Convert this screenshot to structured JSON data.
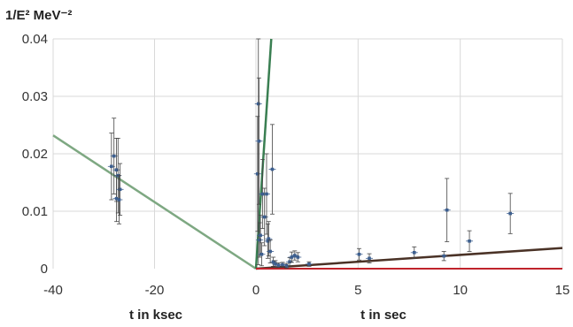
{
  "chart_data": {
    "type": "scatter",
    "y_axis_title": "1/E²  MeV⁻²",
    "xlabel_left": "t in ksec",
    "xlabel_right": "t in sec",
    "ylim": [
      0,
      0.04
    ],
    "y_ticks": [
      "0",
      "0.01",
      "0.02",
      "0.03",
      "0.04"
    ],
    "x_ticks_left": [
      "-40",
      "-20",
      "0"
    ],
    "x_ticks_right": [
      "5",
      "10",
      "15"
    ],
    "left_panel": {
      "unit": "ksec",
      "xlim": [
        -40,
        0
      ]
    },
    "right_panel": {
      "unit": "sec",
      "xlim": [
        0,
        15
      ]
    },
    "grid": true,
    "colors": {
      "points": "#3d5f8f",
      "error_bars": "#444444",
      "fit_left": "#7ea882",
      "fit_green": "#3a7f52",
      "fit_brown": "#4a3226",
      "baseline": "#c0232b",
      "grid": "#d9d9d9"
    },
    "points_ksec": [
      {
        "x": -28.5,
        "y": 0.0178,
        "yerr": 0.0058
      },
      {
        "x": -28.0,
        "y": 0.0196,
        "yerr": 0.0066
      },
      {
        "x": -27.5,
        "y": 0.0172,
        "yerr": 0.0055
      },
      {
        "x": -27.5,
        "y": 0.0122,
        "yerr": 0.004
      },
      {
        "x": -27.2,
        "y": 0.0162,
        "yerr": 0.0065
      },
      {
        "x": -26.8,
        "y": 0.0138,
        "yerr": 0.0045
      },
      {
        "x": -27.0,
        "y": 0.012,
        "yerr": 0.0042
      }
    ],
    "points_sec": [
      {
        "x": 0.08,
        "y": 0.0165,
        "yerr": 0.01
      },
      {
        "x": 0.12,
        "y": 0.0287,
        "yerr": 0.028
      },
      {
        "x": 0.15,
        "y": 0.0222,
        "yerr": 0.011
      },
      {
        "x": 0.18,
        "y": 0.005,
        "yerr": 0.003
      },
      {
        "x": 0.22,
        "y": 0.0058,
        "yerr": 0.0035
      },
      {
        "x": 0.28,
        "y": 0.0025,
        "yerr": 0.002
      },
      {
        "x": 0.32,
        "y": 0.013,
        "yerr": 0.006
      },
      {
        "x": 0.42,
        "y": 0.009,
        "yerr": 0.005
      },
      {
        "x": 0.52,
        "y": 0.013,
        "yerr": 0.007
      },
      {
        "x": 0.58,
        "y": 0.0048,
        "yerr": 0.003
      },
      {
        "x": 0.62,
        "y": 0.0052,
        "yerr": 0.003
      },
      {
        "x": 0.7,
        "y": 0.003,
        "yerr": 0.002
      },
      {
        "x": 0.8,
        "y": 0.0173,
        "yerr": 0.0078
      },
      {
        "x": 0.85,
        "y": 0.0012,
        "yerr": 0.0008
      },
      {
        "x": 0.95,
        "y": 0.0008,
        "yerr": 0.0006
      },
      {
        "x": 1.1,
        "y": 0.0006,
        "yerr": 0.0004
      },
      {
        "x": 1.3,
        "y": 0.0007,
        "yerr": 0.0004
      },
      {
        "x": 1.5,
        "y": 0.0005,
        "yerr": 0.0004
      },
      {
        "x": 1.65,
        "y": 0.0012,
        "yerr": 0.0007
      },
      {
        "x": 1.75,
        "y": 0.002,
        "yerr": 0.0009
      },
      {
        "x": 1.9,
        "y": 0.0023,
        "yerr": 0.0008
      },
      {
        "x": 2.05,
        "y": 0.002,
        "yerr": 0.0008
      },
      {
        "x": 2.6,
        "y": 0.0008,
        "yerr": 0.0004
      },
      {
        "x": 5.05,
        "y": 0.0025,
        "yerr": 0.001
      },
      {
        "x": 5.55,
        "y": 0.0018,
        "yerr": 0.0008
      },
      {
        "x": 7.75,
        "y": 0.0028,
        "yerr": 0.001
      },
      {
        "x": 9.2,
        "y": 0.0022,
        "yerr": 0.0008
      },
      {
        "x": 9.35,
        "y": 0.0102,
        "yerr": 0.0055
      },
      {
        "x": 10.45,
        "y": 0.0048,
        "yerr": 0.0018
      },
      {
        "x": 12.45,
        "y": 0.0096,
        "yerr": 0.0035
      }
    ],
    "fit_lines": [
      {
        "panel": "ksec",
        "x": [
          -40,
          0
        ],
        "y": [
          0.0232,
          0
        ]
      },
      {
        "panel": "sec",
        "x": [
          0,
          0.75
        ],
        "y": [
          0,
          0.04
        ]
      },
      {
        "panel": "sec",
        "x": [
          0,
          15
        ],
        "y": [
          0,
          0.0036
        ]
      },
      {
        "panel": "sec",
        "x": [
          0,
          15
        ],
        "y": [
          0,
          0
        ]
      }
    ]
  }
}
